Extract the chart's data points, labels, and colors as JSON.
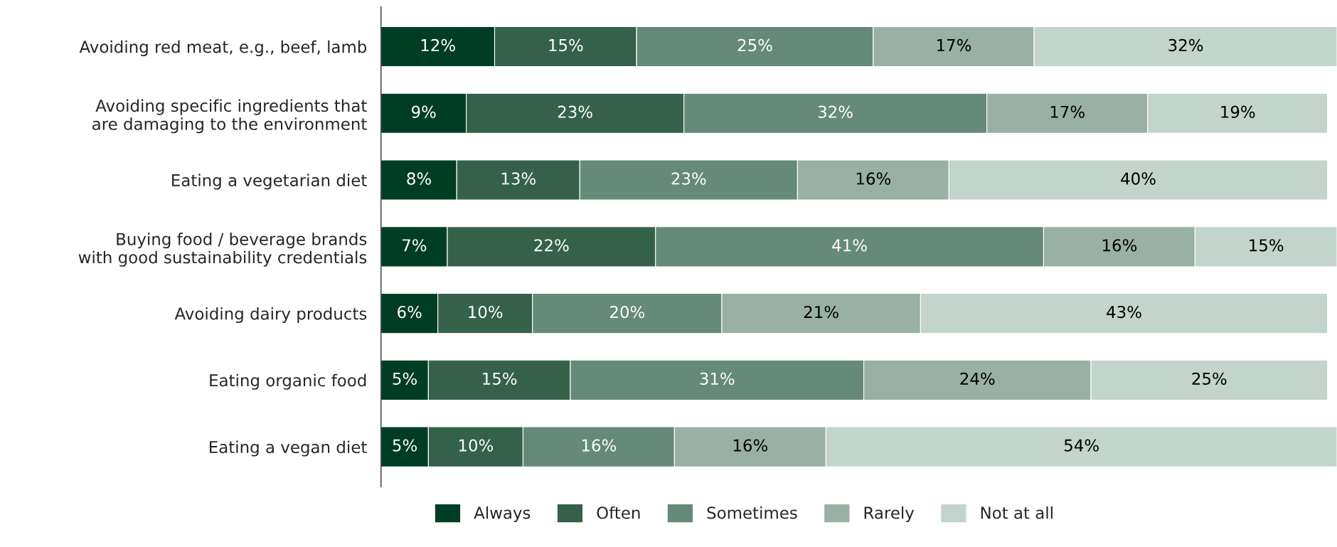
{
  "chart_data": {
    "type": "bar",
    "orientation": "horizontal",
    "stacked": true,
    "legend": "bottom",
    "grid": false,
    "categories": [
      "Avoiding red meat, e.g., beef, lamb",
      "Avoiding specific ingredients that\nare damaging to the environment",
      "Eating a vegetarian diet",
      "Buying food / beverage brands\nwith good sustainability credentials",
      "Avoiding dairy products",
      "Eating organic food",
      "Eating a vegan diet"
    ],
    "series": [
      {
        "name": "Always",
        "color": "#003d25",
        "values": [
          12,
          9,
          8,
          7,
          6,
          5,
          5
        ],
        "value_labels": [
          "12%",
          "9%",
          "8%",
          "7%",
          "6%",
          "5%",
          "5%"
        ]
      },
      {
        "name": "Often",
        "color": "#35614b",
        "values": [
          15,
          23,
          13,
          22,
          10,
          15,
          10
        ],
        "value_labels": [
          "15%",
          "23%",
          "13%",
          "22%",
          "10%",
          "15%",
          "10%"
        ]
      },
      {
        "name": "Sometimes",
        "color": "#668a79",
        "values": [
          25,
          32,
          23,
          41,
          20,
          31,
          16
        ],
        "value_labels": [
          "25%",
          "32%",
          "23%",
          "41%",
          "20%",
          "31%",
          "16%"
        ]
      },
      {
        "name": "Rarely",
        "color": "#99b1a5",
        "values": [
          17,
          17,
          16,
          16,
          21,
          24,
          16
        ],
        "value_labels": [
          "17%",
          "17%",
          "16%",
          "16%",
          "21%",
          "24%",
          "16%"
        ]
      },
      {
        "name": "Not at all",
        "color": "#c2d4cb",
        "values": [
          32,
          19,
          40,
          15,
          43,
          25,
          54
        ],
        "value_labels": [
          "32%",
          "19%",
          "40%",
          "15%",
          "43%",
          "25%",
          "54%"
        ]
      }
    ]
  }
}
